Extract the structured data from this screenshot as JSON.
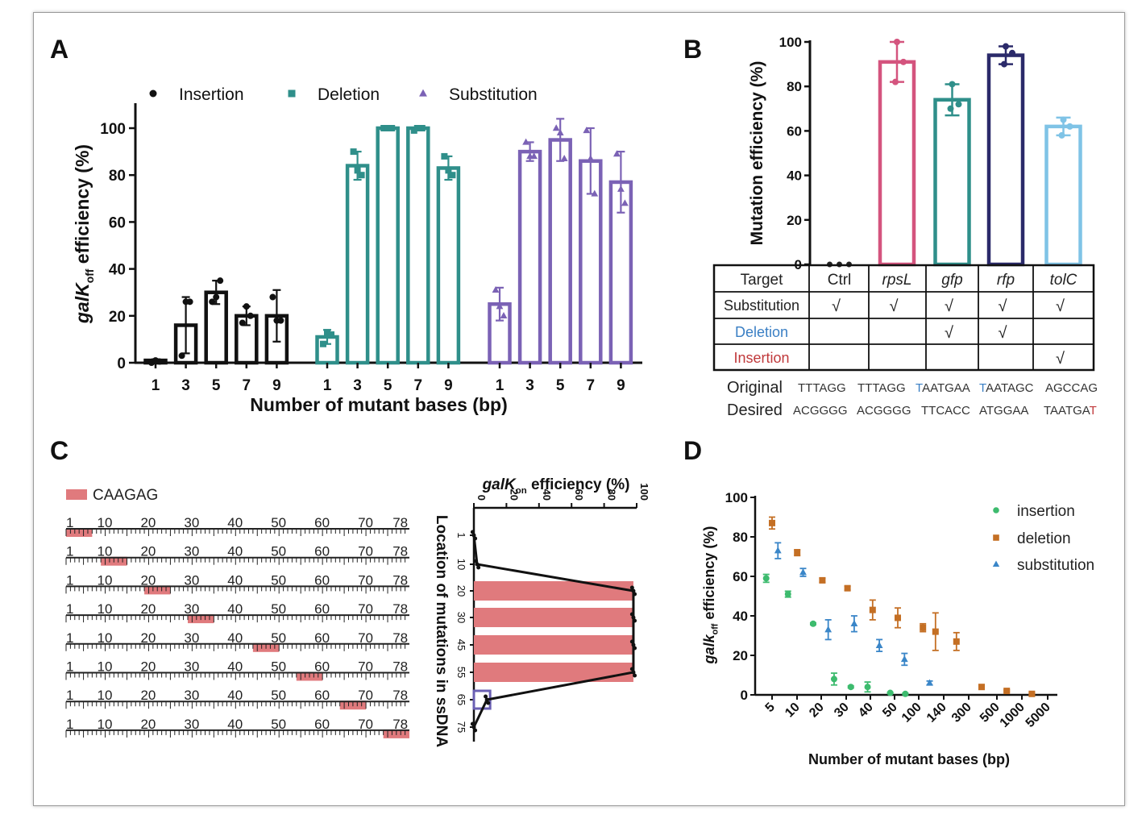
{
  "chart_data": [
    {
      "panel": "A",
      "type": "bar",
      "ylabel": "galK",
      "ylabel_sub": "off",
      "ylabel_rest": " efficiency (%)",
      "xlabel": "Number of mutant bases (bp)",
      "ylim": [
        0,
        110
      ],
      "yticks": [
        "0",
        "20",
        "40",
        "60",
        "80",
        "100"
      ],
      "categories": [
        "1",
        "3",
        "5",
        "7",
        "9"
      ],
      "series": [
        {
          "name": "Insertion",
          "color": "#111111",
          "marker": "circle",
          "values": [
            1,
            16,
            30,
            20,
            20
          ],
          "err": [
            0.5,
            12,
            5,
            4,
            11
          ],
          "points": [
            [
              0,
              0.5,
              1
            ],
            [
              3,
              26,
              26
            ],
            [
              26,
              35,
              28
            ],
            [
              17,
              20,
              24
            ],
            [
              28,
              18,
              18
            ]
          ]
        },
        {
          "name": "Deletion",
          "color": "#2f8f8a",
          "marker": "square",
          "values": [
            11,
            84,
            100,
            100,
            83
          ],
          "err": [
            3,
            6,
            0.5,
            1,
            5
          ],
          "points": [
            [
              8,
              12,
              13
            ],
            [
              90,
              80,
              82
            ],
            [
              100,
              100,
              100
            ],
            [
              99,
              100,
              100
            ],
            [
              88,
              80,
              82
            ]
          ]
        },
        {
          "name": "Substitution",
          "color": "#7b62b5",
          "marker": "triangle",
          "values": [
            25,
            90,
            95,
            86,
            77
          ],
          "err": [
            7,
            4,
            9,
            14,
            13
          ],
          "points": [
            [
              31,
              20,
              24
            ],
            [
              94,
              88,
              88
            ],
            [
              100,
              87,
              98
            ],
            [
              99,
              72,
              87
            ],
            [
              89,
              68,
              74
            ]
          ]
        }
      ]
    },
    {
      "panel": "B",
      "type": "bar",
      "ylabel": "Mutation efficiency (%)",
      "ylim": [
        0,
        100
      ],
      "yticks": [
        "0",
        "20",
        "40",
        "60",
        "80",
        "100"
      ],
      "bars": [
        {
          "target": "Ctrl",
          "color": "#222222",
          "value": 0,
          "err": 0,
          "points": [
            0,
            0,
            0
          ]
        },
        {
          "target": "rpsL",
          "color": "#d4547e",
          "value": 91,
          "err": 9,
          "points": [
            100,
            82,
            91
          ]
        },
        {
          "target": "gfp",
          "color": "#2f8f8a",
          "value": 74,
          "err": 7,
          "points": [
            81,
            70,
            72
          ]
        },
        {
          "target": "rfp",
          "color": "#2b2a6a",
          "value": 94,
          "err": 4,
          "points": [
            98,
            90,
            95
          ]
        },
        {
          "target": "tolC",
          "color": "#7fc3e6",
          "value": 62,
          "err": 4,
          "points": [
            65,
            58,
            62
          ]
        }
      ],
      "table": {
        "header": [
          "Target",
          "Ctrl",
          "rpsL",
          "gfp",
          "rfp",
          "tolC"
        ],
        "rows": [
          {
            "label": "Substitution",
            "color": "#222222",
            "cells": [
              "√",
              "√",
              "√",
              "√",
              "√"
            ]
          },
          {
            "label": "Deletion",
            "color": "#3a7fc4",
            "cells": [
              "",
              "",
              "√",
              "√",
              ""
            ]
          },
          {
            "label": "Insertion",
            "color": "#c0393b",
            "cells": [
              "",
              "",
              "",
              "",
              "√"
            ]
          }
        ]
      },
      "original_label": "Original",
      "desired_label": "Desired",
      "original": [
        [
          "TTTAGG"
        ],
        [
          "TTTAGG"
        ],
        [
          "T",
          "AATGAA"
        ],
        [
          "T",
          "AATAGC"
        ],
        [
          "AGCCAG"
        ]
      ],
      "desired": [
        [
          "ACGGGG"
        ],
        [
          "ACGGGG"
        ],
        [
          "TTCACC"
        ],
        [
          "ATGGAA"
        ],
        [
          "TAATGA",
          "T"
        ]
      ],
      "seq_accent_blue": "#3a7fc4",
      "seq_accent_red": "#c0393b"
    },
    {
      "panel": "C",
      "type": "bar",
      "legend": "CAAGAG",
      "highlight_color": "#e07a7d",
      "ruler_labels": [
        "1",
        "10",
        "20",
        "30",
        "40",
        "50",
        "60",
        "70",
        "78"
      ],
      "mutation_starts": [
        1,
        9,
        19,
        29,
        44,
        54,
        64,
        74
      ],
      "xlabel": "galK",
      "xlabel_sub": "on",
      "xlabel_rest": " efficiency (%)",
      "ylabel": "Location of mutations in ssDNA",
      "xlim": [
        0,
        100
      ],
      "xticks": [
        "0",
        "20",
        "40",
        "60",
        "80",
        "100"
      ],
      "yticks": [
        "1",
        "10",
        "20",
        "30",
        "45",
        "55",
        "65",
        "75"
      ],
      "values": [
        0,
        2,
        98,
        98,
        98,
        98,
        8,
        0
      ]
    },
    {
      "panel": "D",
      "type": "scatter",
      "ylabel": "galk",
      "ylabel_sub": "off",
      "ylabel_rest": " efficiency (%)",
      "xlabel": "Number of mutant bases (bp)",
      "ylim": [
        0,
        100
      ],
      "yticks": [
        "0",
        "20",
        "40",
        "60",
        "80",
        "100"
      ],
      "xticks": [
        "5",
        "10",
        "20",
        "30",
        "40",
        "50",
        "100",
        "140",
        "300",
        "500",
        "1000",
        "5000"
      ],
      "series": [
        {
          "name": "insertion",
          "color": "#3dbb6e",
          "marker": "circle",
          "points": [
            [
              4.3,
              59,
              2
            ],
            [
              6.9,
              51,
              1.5
            ],
            [
              9.9,
              36,
              0.5
            ],
            [
              12.4,
              8,
              3
            ],
            [
              14.4,
              4,
              0.5
            ],
            [
              16.4,
              4,
              2.5
            ],
            [
              19.1,
              1,
              0.3
            ],
            [
              20.9,
              0.5,
              0.3
            ]
          ]
        },
        {
          "name": "deletion",
          "color": "#c46f24",
          "marker": "square",
          "points": [
            [
              5,
              87,
              3
            ],
            [
              8,
              72,
              1.5
            ],
            [
              11,
              58,
              1
            ],
            [
              14,
              54,
              1
            ],
            [
              17,
              43,
              5
            ],
            [
              20,
              39,
              5
            ],
            [
              23,
              34,
              2
            ],
            [
              24.5,
              32,
              9.5
            ],
            [
              27,
              27,
              4.5
            ],
            [
              30,
              4,
              0.5
            ],
            [
              33,
              2,
              0.5
            ],
            [
              36,
              0.5,
              0.3
            ]
          ]
        },
        {
          "name": "substitution",
          "color": "#3a86c8",
          "marker": "triangle",
          "points": [
            [
              5.7,
              73,
              4
            ],
            [
              8.7,
              62,
              2
            ],
            [
              11.7,
              33,
              5
            ],
            [
              14.8,
              36,
              4
            ],
            [
              17.8,
              25,
              3
            ],
            [
              20.8,
              18,
              3
            ],
            [
              23.8,
              6,
              1
            ]
          ]
        }
      ]
    }
  ],
  "labels": {
    "A": "A",
    "B": "B",
    "C": "C",
    "D": "D"
  }
}
